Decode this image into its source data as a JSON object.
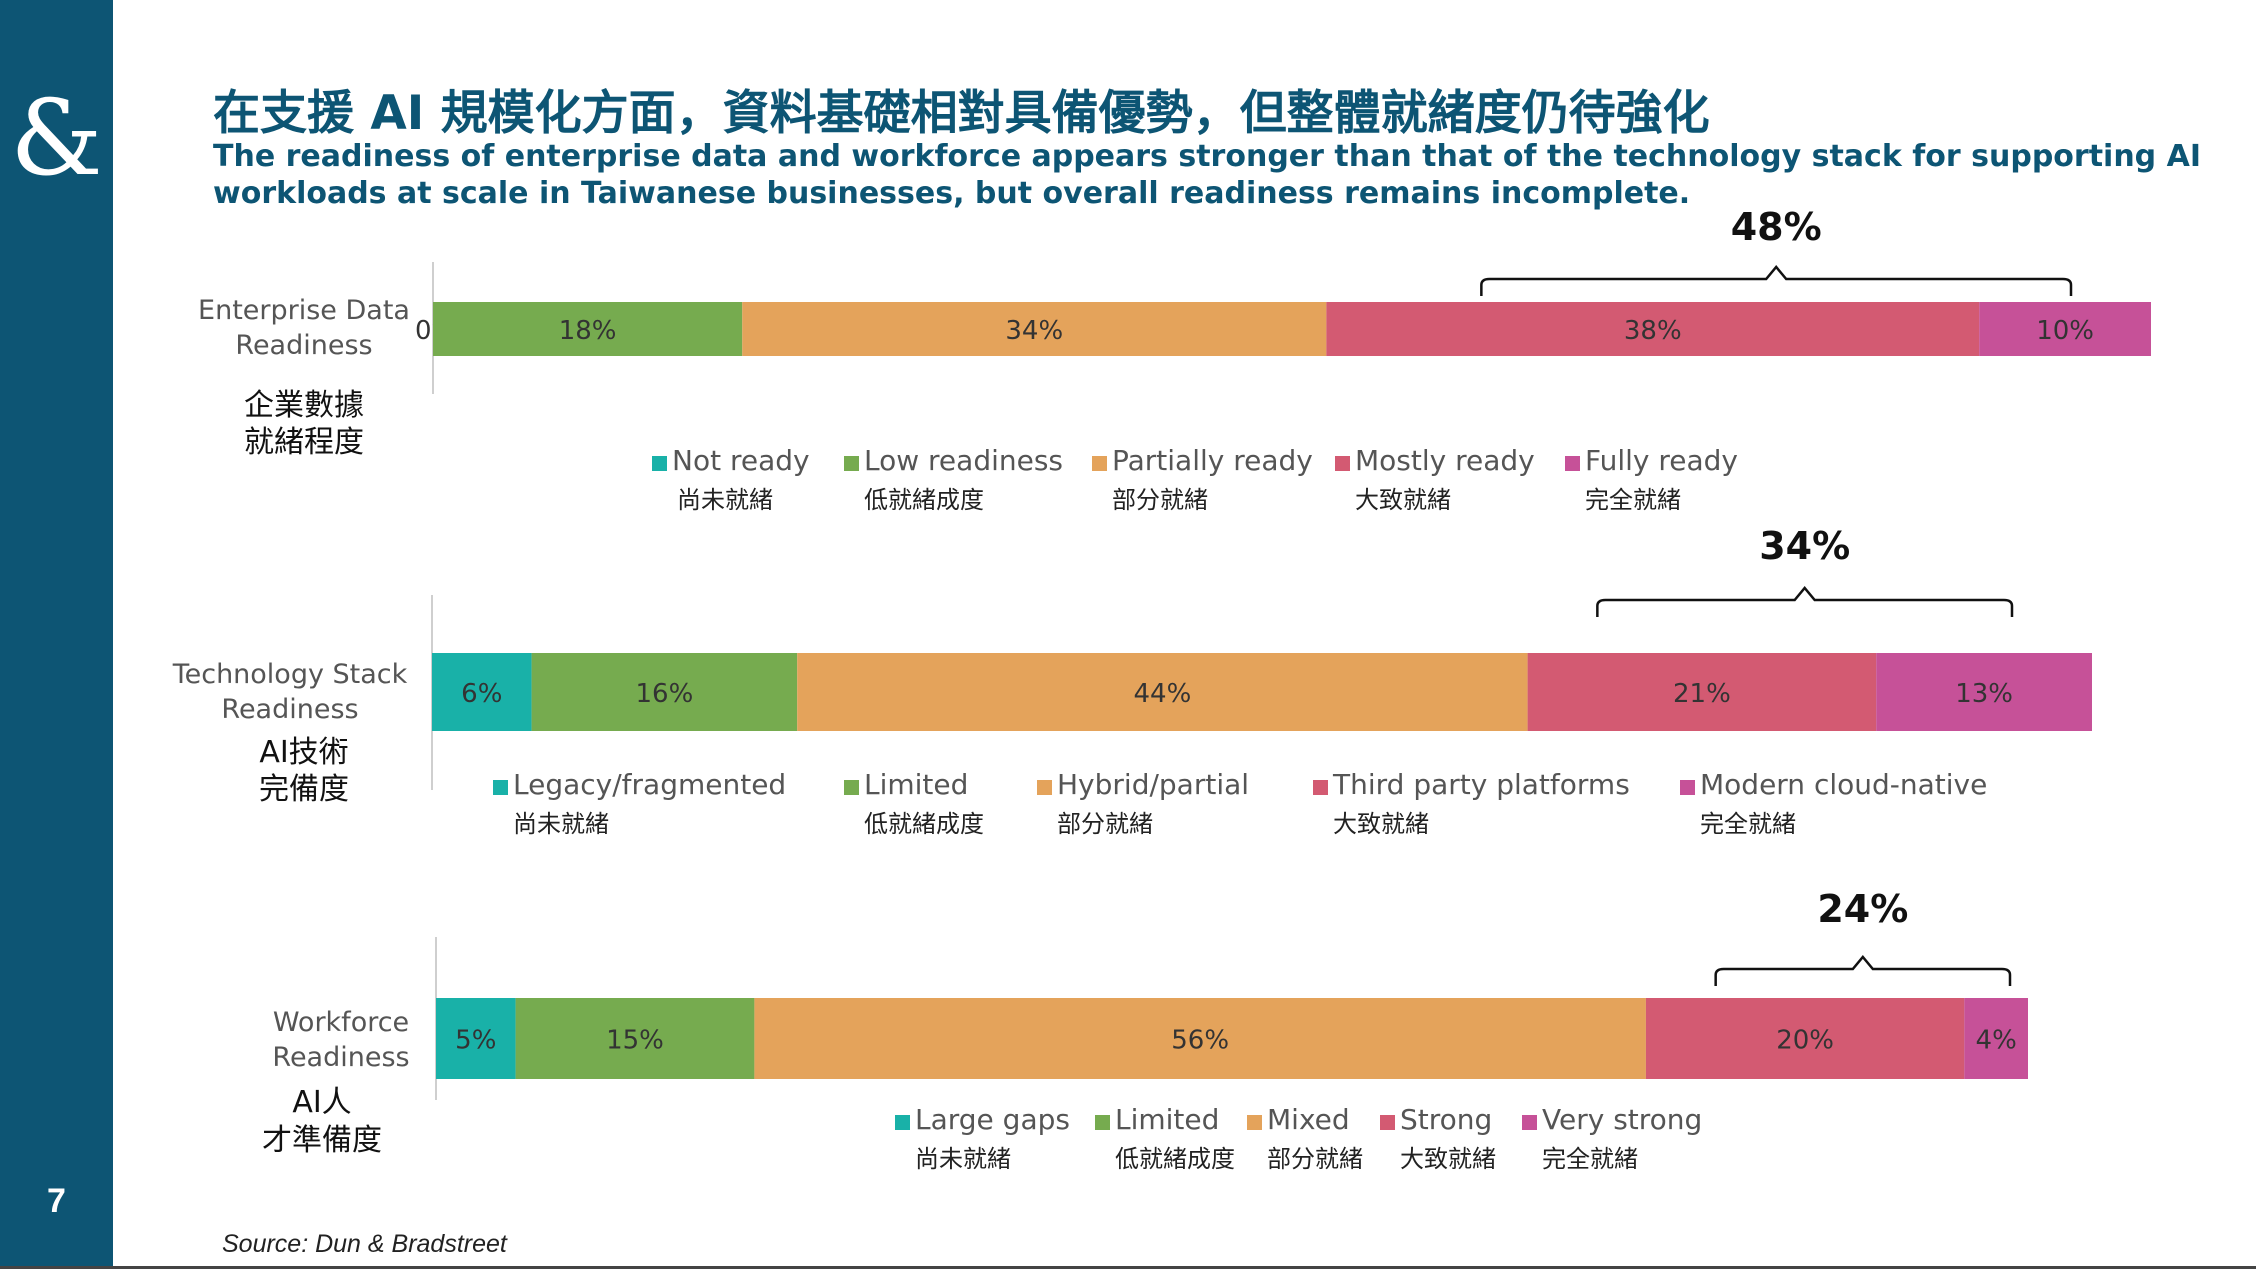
{
  "page": {
    "number": "7",
    "logo": "&"
  },
  "title": "在支援 AI 規模化方面，資料基礎相對具備優勢，但整體就緒度仍待強化",
  "subtitle": "The readiness of enterprise data and workforce appears stronger than that of the technology stack for supporting AI workloads at scale in Taiwanese businesses, but overall readiness remains incomplete.",
  "source": "Source: Dun & Bradstreet",
  "colors": {
    "sidebar": "#0d5574",
    "level1": "#19b1a8",
    "level2": "#76ab4f",
    "level3": "#e4a35b",
    "level4": "#d35a72",
    "level5": "#c65198"
  },
  "chart_data": [
    {
      "type": "bar",
      "orientation": "horizontal-stacked",
      "category": "Enterprise Data Readiness",
      "category_zh": "企業數據\n就緒程度",
      "xlim": [
        0,
        100
      ],
      "series": [
        {
          "name": "Not ready",
          "name_zh": "尚未就緒",
          "value": 0,
          "label": "0%",
          "color": "#19b1a8"
        },
        {
          "name": "Low readiness",
          "name_zh": "低就緒成度",
          "value": 18,
          "label": "18%",
          "color": "#76ab4f"
        },
        {
          "name": "Partially ready",
          "name_zh": "部分就緒",
          "value": 34,
          "label": "34%",
          "color": "#e4a35b"
        },
        {
          "name": "Mostly ready",
          "name_zh": "大致就緒",
          "value": 38,
          "label": "38%",
          "color": "#d35a72"
        },
        {
          "name": "Fully ready",
          "name_zh": "完全就緒",
          "value": 10,
          "label": "10%",
          "color": "#c65198"
        }
      ],
      "bracket_total": "48%"
    },
    {
      "type": "bar",
      "orientation": "horizontal-stacked",
      "category": "Technology Stack Readiness",
      "category_zh": "AI技術\n完備度",
      "xlim": [
        0,
        100
      ],
      "series": [
        {
          "name": "Legacy/fragmented",
          "name_zh": "尚未就緒",
          "value": 6,
          "label": "6%",
          "color": "#19b1a8"
        },
        {
          "name": "Limited",
          "name_zh": "低就緒成度",
          "value": 16,
          "label": "16%",
          "color": "#76ab4f"
        },
        {
          "name": "Hybrid/partial",
          "name_zh": "部分就緒",
          "value": 44,
          "label": "44%",
          "color": "#e4a35b"
        },
        {
          "name": "Third party platforms",
          "name_zh": "大致就緒",
          "value": 21,
          "label": "21%",
          "color": "#d35a72"
        },
        {
          "name": "Modern cloud-native",
          "name_zh": "完全就緒",
          "value": 13,
          "label": "13%",
          "color": "#c65198"
        }
      ],
      "bracket_total": "34%"
    },
    {
      "type": "bar",
      "orientation": "horizontal-stacked",
      "category": "Workforce Readiness",
      "category_zh": "AI人\n才準備度",
      "xlim": [
        0,
        100
      ],
      "series": [
        {
          "name": "Large gaps",
          "name_zh": "尚未就緒",
          "value": 5,
          "label": "5%",
          "color": "#19b1a8"
        },
        {
          "name": "Limited",
          "name_zh": "低就緒成度",
          "value": 15,
          "label": "15%",
          "color": "#76ab4f"
        },
        {
          "name": "Mixed",
          "name_zh": "部分就緒",
          "value": 56,
          "label": "56%",
          "color": "#e4a35b"
        },
        {
          "name": "Strong",
          "name_zh": "大致就緒",
          "value": 20,
          "label": "20%",
          "color": "#d35a72"
        },
        {
          "name": "Very strong",
          "name_zh": "完全就緒",
          "value": 4,
          "label": "4%",
          "color": "#c65198"
        }
      ],
      "bracket_total": "24%"
    }
  ]
}
